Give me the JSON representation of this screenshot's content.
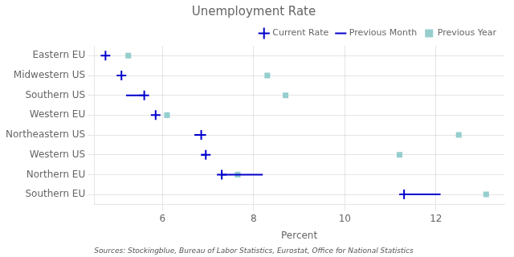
{
  "chart_data": {
    "type": "dot",
    "title": "Unemployment Rate",
    "xlabel": "Percent",
    "source": "Sources: Stockingblue, Bureau of Labor Statistics, Eurostat, Office for National Statistics",
    "categories": [
      "Eastern EU",
      "Midwestern US",
      "Southern US",
      "Western EU",
      "Northeastern US",
      "Western US",
      "Northern EU",
      "Southern EU"
    ],
    "series": [
      {
        "name": "Current Rate",
        "color": "#0000cc",
        "marker": "plus",
        "values": [
          4.75,
          5.1,
          5.6,
          5.85,
          6.85,
          6.95,
          7.3,
          11.3
        ]
      },
      {
        "name": "Previous Month",
        "color": "#0000cc",
        "type": "segment",
        "line_style": "solid",
        "values": [
          4.75,
          5.1,
          5.2,
          5.85,
          6.7,
          6.85,
          8.2,
          12.1
        ]
      },
      {
        "name": "Previous Year",
        "color": "#96cece",
        "marker": "square",
        "values": [
          5.25,
          8.3,
          8.7,
          6.1,
          12.5,
          11.2,
          7.65,
          13.1
        ]
      }
    ],
    "xlim": [
      4.5,
      13.5
    ],
    "xticks": [
      6,
      8,
      10,
      12
    ],
    "orientation": "horizontal",
    "grid": true,
    "legend": "upper right"
  }
}
